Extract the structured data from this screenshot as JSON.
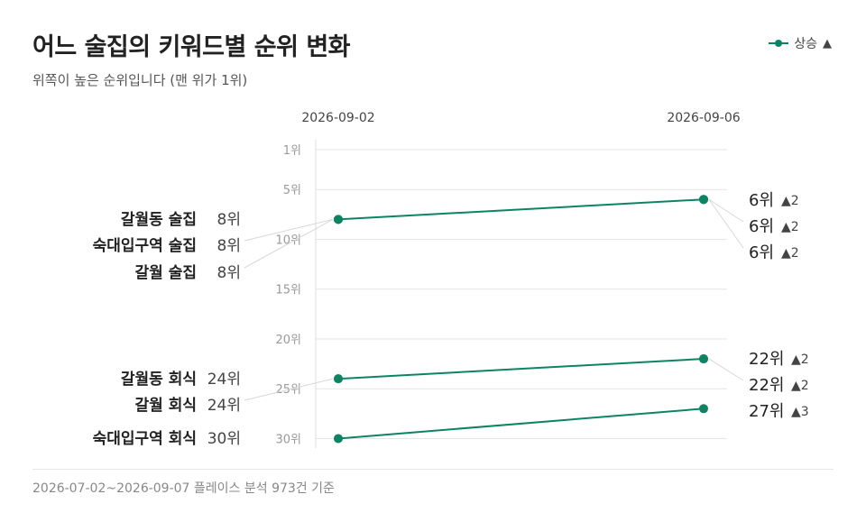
{
  "title": "어느 술집의 키워드별 순위 변화",
  "subtitle": "위쪽이 높은 순위입니다 (맨 위가 1위)",
  "legend": {
    "label": "상승",
    "arrow": "▲"
  },
  "footer": "2026-07-02~2026-09-07 플레이스 분석 973건 기준",
  "colors": {
    "line": "#0c8463",
    "grid": "#e6e6e6",
    "leader": "#d8d8d8",
    "delta": "#444444"
  },
  "chart_data": {
    "type": "line",
    "subtype": "slope",
    "x": [
      "2026-09-02",
      "2026-09-06"
    ],
    "y_axis": {
      "reversed": true,
      "ylim": [
        1,
        30
      ],
      "ticks": [
        1,
        5,
        10,
        15,
        20,
        25,
        30
      ],
      "tick_suffix": "위"
    },
    "grid": true,
    "series": [
      {
        "name": "갈월동 술집",
        "values": [
          8,
          6
        ],
        "delta": 2
      },
      {
        "name": "숙대입구역 술집",
        "values": [
          8,
          6
        ],
        "delta": 2
      },
      {
        "name": "갈월 술집",
        "values": [
          8,
          6
        ],
        "delta": 2
      },
      {
        "name": "갈월동 회식",
        "values": [
          24,
          22
        ],
        "delta": 2
      },
      {
        "name": "갈월 회식",
        "values": [
          24,
          22
        ],
        "delta": 2
      },
      {
        "name": "숙대입구역 회식",
        "values": [
          30,
          27
        ],
        "delta": 3
      }
    ],
    "left_labels": [
      {
        "series": 0,
        "text": "갈월동 술집",
        "value_text": "8위"
      },
      {
        "series": 1,
        "text": "숙대입구역 술집",
        "value_text": "8위"
      },
      {
        "series": 2,
        "text": "갈월 술집",
        "value_text": "8위"
      },
      {
        "series": 3,
        "text": "갈월동 회식",
        "value_text": "24위"
      },
      {
        "series": 4,
        "text": "갈월 회식",
        "value_text": "24위"
      },
      {
        "series": 5,
        "text": "숙대입구역 회식",
        "value_text": "30위"
      }
    ],
    "right_labels": [
      {
        "series": 0,
        "value_text": "6위",
        "delta_text": "▲2"
      },
      {
        "series": 1,
        "value_text": "6위",
        "delta_text": "▲2"
      },
      {
        "series": 2,
        "value_text": "6위",
        "delta_text": "▲2"
      },
      {
        "series": 3,
        "value_text": "22위",
        "delta_text": "▲2"
      },
      {
        "series": 4,
        "value_text": "22위",
        "delta_text": "▲2"
      },
      {
        "series": 5,
        "value_text": "27위",
        "delta_text": "▲3"
      }
    ]
  }
}
